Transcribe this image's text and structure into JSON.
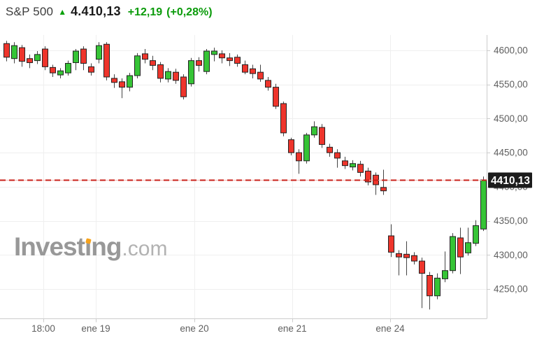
{
  "header": {
    "symbol": "S&P 500",
    "direction_icon": "up-arrow",
    "last": "4.410,13",
    "change": "+12,19",
    "change_pct": "(+0,28%)"
  },
  "watermark": {
    "text_before_accent": "Invest",
    "accent_char": "ı",
    "text_after_accent": "ng",
    "suffix": ".com"
  },
  "colors": {
    "up_fill": "#36c436",
    "down_fill": "#ee352c",
    "candle_border": "#222222",
    "wick": "#444444",
    "price_line_dash": "#c9201a",
    "price_line_base": "#f3b6b1",
    "price_tag_bg": "#1c1c1c",
    "price_tag_text": "#ffffff",
    "grid": "#efefef",
    "axis": "#cccccc",
    "tick_label": "#5f5f5f",
    "header_green": "#0b9b0b"
  },
  "chart_data": {
    "type": "candlestick",
    "title": "S&P 500",
    "last_price": 4410.13,
    "last_price_label": "4410,13",
    "price_line_value": 4410.13,
    "grid": true,
    "x_axis": {
      "labels": [
        "18:00",
        "ene 19",
        "ene 20",
        "ene 21",
        "ene 24"
      ]
    },
    "y_axis": {
      "range": [
        4218,
        4615
      ],
      "ticks": [
        {
          "value": 4600,
          "label": "4600,00"
        },
        {
          "value": 4550,
          "label": "4550,00"
        },
        {
          "value": 4500,
          "label": "4500,00"
        },
        {
          "value": 4450,
          "label": "4450,00"
        },
        {
          "value": 4400,
          "label": "4400,00"
        },
        {
          "value": 4350,
          "label": "4350,00"
        },
        {
          "value": 4300,
          "label": "4300,00"
        },
        {
          "value": 4250,
          "label": "4250,00"
        }
      ]
    },
    "candles_format": [
      "open",
      "high",
      "low",
      "close"
    ],
    "candles": [
      [
        4610,
        4614,
        4584,
        4590
      ],
      [
        4588,
        4612,
        4581,
        4607
      ],
      [
        4604,
        4608,
        4576,
        4584
      ],
      [
        4588,
        4594,
        4574,
        4582
      ],
      [
        4585,
        4599,
        4580,
        4594
      ],
      [
        4602,
        4606,
        4571,
        4576
      ],
      [
        4575,
        4579,
        4561,
        4567
      ],
      [
        4564,
        4574,
        4559,
        4570
      ],
      [
        4567,
        4585,
        4563,
        4581
      ],
      [
        4582,
        4602,
        4571,
        4599
      ],
      [
        4602,
        4606,
        4571,
        4581
      ],
      [
        4576,
        4581,
        4563,
        4568
      ],
      [
        4587,
        4612,
        4581,
        4607
      ],
      [
        4609,
        4612,
        4556,
        4561
      ],
      [
        4559,
        4565,
        4545,
        4553
      ],
      [
        4554,
        4559,
        4530,
        4546
      ],
      [
        4546,
        4567,
        4540,
        4563
      ],
      [
        4563,
        4596,
        4559,
        4592
      ],
      [
        4595,
        4602,
        4581,
        4587
      ],
      [
        4585,
        4592,
        4571,
        4578
      ],
      [
        4579,
        4583,
        4553,
        4559
      ],
      [
        4558,
        4574,
        4553,
        4569
      ],
      [
        4568,
        4573,
        4551,
        4556
      ],
      [
        4561,
        4565,
        4528,
        4532
      ],
      [
        4551,
        4589,
        4547,
        4585
      ],
      [
        4585,
        4590,
        4569,
        4578
      ],
      [
        4569,
        4602,
        4565,
        4599
      ],
      [
        4594,
        4604,
        4584,
        4599
      ],
      [
        4595,
        4600,
        4581,
        4589
      ],
      [
        4589,
        4596,
        4577,
        4585
      ],
      [
        4590,
        4594,
        4576,
        4581
      ],
      [
        4579,
        4585,
        4565,
        4568
      ],
      [
        4573,
        4579,
        4559,
        4566
      ],
      [
        4568,
        4579,
        4554,
        4558
      ],
      [
        4556,
        4561,
        4541,
        4546
      ],
      [
        4546,
        4551,
        4514,
        4518
      ],
      [
        4522,
        4525,
        4474,
        4479
      ],
      [
        4469,
        4472,
        4446,
        4450
      ],
      [
        4450,
        4455,
        4419,
        4438
      ],
      [
        4438,
        4479,
        4434,
        4476
      ],
      [
        4476,
        4496,
        4472,
        4488
      ],
      [
        4487,
        4492,
        4457,
        4462
      ],
      [
        4458,
        4463,
        4444,
        4450
      ],
      [
        4450,
        4455,
        4428,
        4442
      ],
      [
        4438,
        4444,
        4426,
        4431
      ],
      [
        4429,
        4439,
        4424,
        4434
      ],
      [
        4433,
        4438,
        4415,
        4421
      ],
      [
        4423,
        4428,
        4402,
        4407
      ],
      [
        4417,
        4421,
        4388,
        4403
      ],
      [
        4399,
        4425,
        4388,
        4394
      ],
      [
        4328,
        4345,
        4297,
        4304
      ],
      [
        4302,
        4307,
        4270,
        4297
      ],
      [
        4301,
        4320,
        4270,
        4296
      ],
      [
        4299,
        4304,
        4286,
        4291
      ],
      [
        4291,
        4296,
        4222,
        4273
      ],
      [
        4270,
        4275,
        4220,
        4240
      ],
      [
        4240,
        4273,
        4235,
        4266
      ],
      [
        4265,
        4305,
        4260,
        4277
      ],
      [
        4277,
        4332,
        4273,
        4327
      ],
      [
        4325,
        4340,
        4272,
        4297
      ],
      [
        4303,
        4340,
        4299,
        4318
      ],
      [
        4317,
        4351,
        4313,
        4343
      ],
      [
        4338,
        4415,
        4335,
        4410.13
      ]
    ]
  }
}
